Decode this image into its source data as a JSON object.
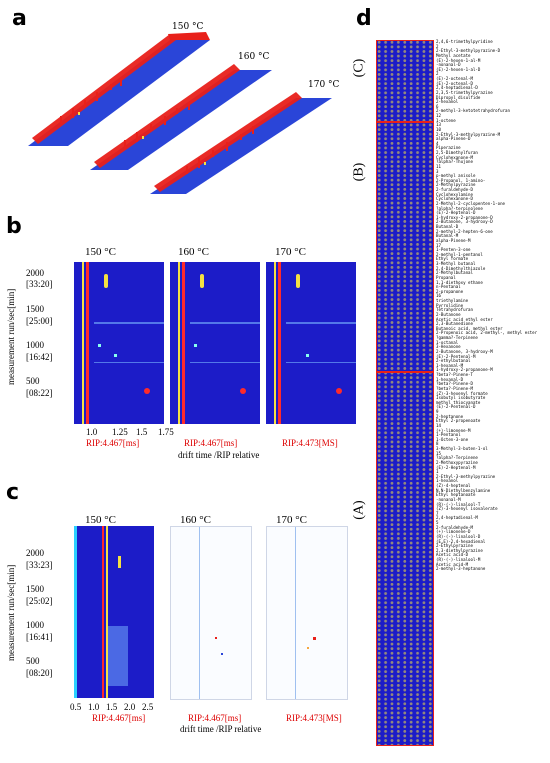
{
  "panels": {
    "a": {
      "letter": "a",
      "temperatures": [
        "150 °C",
        "160 °C",
        "170 °C"
      ]
    },
    "b": {
      "letter": "b",
      "temperatures": [
        "150 °C",
        "160 °C",
        "170 °C"
      ],
      "ylabel": "measurement run/sec[min]",
      "yticks": [
        "2000",
        "[33:20]",
        "1500",
        "[25:00]",
        "1000",
        "[16:42]",
        "500",
        "[08:22]"
      ],
      "xticks": [
        "1.0",
        "1.25",
        "1.5",
        "1.75"
      ],
      "rip_labels": [
        "RIP:4.467[ms]",
        "RIP:4.467[ms]",
        "RIP:4.473[MS]"
      ],
      "xlabel": "drift time /RIP relative"
    },
    "c": {
      "letter": "c",
      "temperatures": [
        "150 °C",
        "160 °C",
        "170 °C"
      ],
      "ylabel": "measurement run/sec[min]",
      "yticks": [
        "2000",
        "[33:23]",
        "1500",
        "[25:02]",
        "1000",
        "[16:41]",
        "500",
        "[08:20]"
      ],
      "xticks": [
        "0.5",
        "1.0",
        "1.5",
        "2.0",
        "2.5"
      ],
      "rip_labels": [
        "RIP:4.467[ms]",
        "RIP:4.467[ms]",
        "RIP:4.473[MS]"
      ],
      "xlabel": "drift time /RIP relative"
    },
    "d": {
      "letter": "d",
      "group_labels": [
        "(C)",
        "(B)",
        "(A)"
      ],
      "compounds": [
        "2,4,6-trimethylpyridine",
        "2",
        "2-Ethyl-3-methylpyrazine-D",
        "Methyl acetate",
        "(E)-2-hexen-1-al-M",
        "-nonanal-D",
        "(E)-2-hexen-1-al-D",
        "2",
        "(E)-2-octenal-M",
        "(E)-2-octenal-D",
        "2,4-heptadienal-D",
        "2,3,5-trimethylpyrazine",
        "Dipropyl disulfide",
        "2-hexanol",
        "6",
        "2-methyl-3-ketotetrahydrofuran",
        "12",
        "1-octene",
        "13",
        "10",
        "2-Ethyl-3-methylpyrazine-M",
        "alpha-Pinene-D",
        "4",
        "Piperazine",
        "2,5-Dimethylfuran",
        "Cyclohexanone-M",
        "?alpha?-Thujone",
        "11",
        "3",
        "p-methyl anisole",
        "2-Propanol, 1-amino-",
        "2-Methylpyrazine",
        "2-furaldehyde-D",
        "Cyclohexylamine",
        "Cyclohexanone-D",
        "2-Methyl-2-cyclopenten-1-one",
        "?alpha?-terpinolene",
        "(E)-2-Heptenal-D",
        "1-hydroxy-2-propanone-D",
        "2-Butanone, 3-hydroxy-D",
        "Butanal-D",
        "2-methyl-2-hepten-6-one",
        "Butanal-M",
        "alpha-Pinene-M",
        "17",
        "1-Penten-3-one",
        "2-methyl-1-pentanol",
        "Ethyl formate",
        "3-Methyl butanal",
        "2,4-Dimethylthiazole",
        "2-Methylbutanal",
        "Propanal",
        "1,1-diethoxy ethane",
        "n-Pentanal",
        "2-propanone",
        "16",
        "triethylamine",
        "Pyrrolidine",
        "Tetrahydrofuran",
        "2-Butanone",
        "Acetic acid ethyl ester",
        "2,3-Butanedione",
        "Butanoic acid, methyl ester",
        "2-Propenoic acid, 2-methyl-, methyl ester",
        "?gamma?-Terpinene",
        "1-octanal",
        "3-Hexanone",
        "2-Butanone, 3-hydroxy-M",
        "(E)-2-Pentenal-M",
        "2-ethylbutanal",
        "1-hexanal-M",
        "1-hydroxy-2-propanone-M",
        "?beta?-Pinene-T",
        "1-hexanal-D",
        "?beta?-Pinene-D",
        "?beta?-Pinene-M",
        "(Z)-3-hexenyl formate",
        "Isobutyl isobutyrate",
        "methyl thiocyanate",
        "(E)-2-Pentenal-D",
        "9",
        "2-heptanone",
        "Ethyl 2-propenoate",
        "14",
        "(+)-limonene-M",
        "1-Pentanol",
        "1-Octen-3-one",
        "8",
        "3-Methyl-3-buten-1-ol",
        "15",
        "?alpha?-Terpinene",
        "2-Methoxypyrazine",
        "(E)-2-Heptenal-M",
        "1",
        "2-Ethyl-3-methylpyrazine",
        "1-hexanol",
        "(Z)-4-heptenal",
        "N,N-Diethylbenzylamine",
        "Ethyl heptanoate",
        "-nonanal-M",
        "(R)-(-)-linalool-T",
        "(Z)-3-hexenyl isovalerate",
        "7",
        "2,4-heptadienal-M",
        "5",
        "2-furaldehyde-M",
        "(+)-limonene-D",
        "(R)-(-)-linalool-D",
        "(E,E)-2,4-hexadienal",
        "2-Ethylpyrazine",
        "2,3-diethylpyrazine",
        "Acetic acid-D",
        "(R)-(-)-linalool-M",
        "Acetic acid-M",
        "2-methyl-3-heptanone"
      ]
    }
  },
  "colors": {
    "background_blue": "#1c1cc8",
    "peak_red": "#e8201a",
    "rip_line_red": "#ff2a2a",
    "plane_blue": "#2050e0"
  }
}
